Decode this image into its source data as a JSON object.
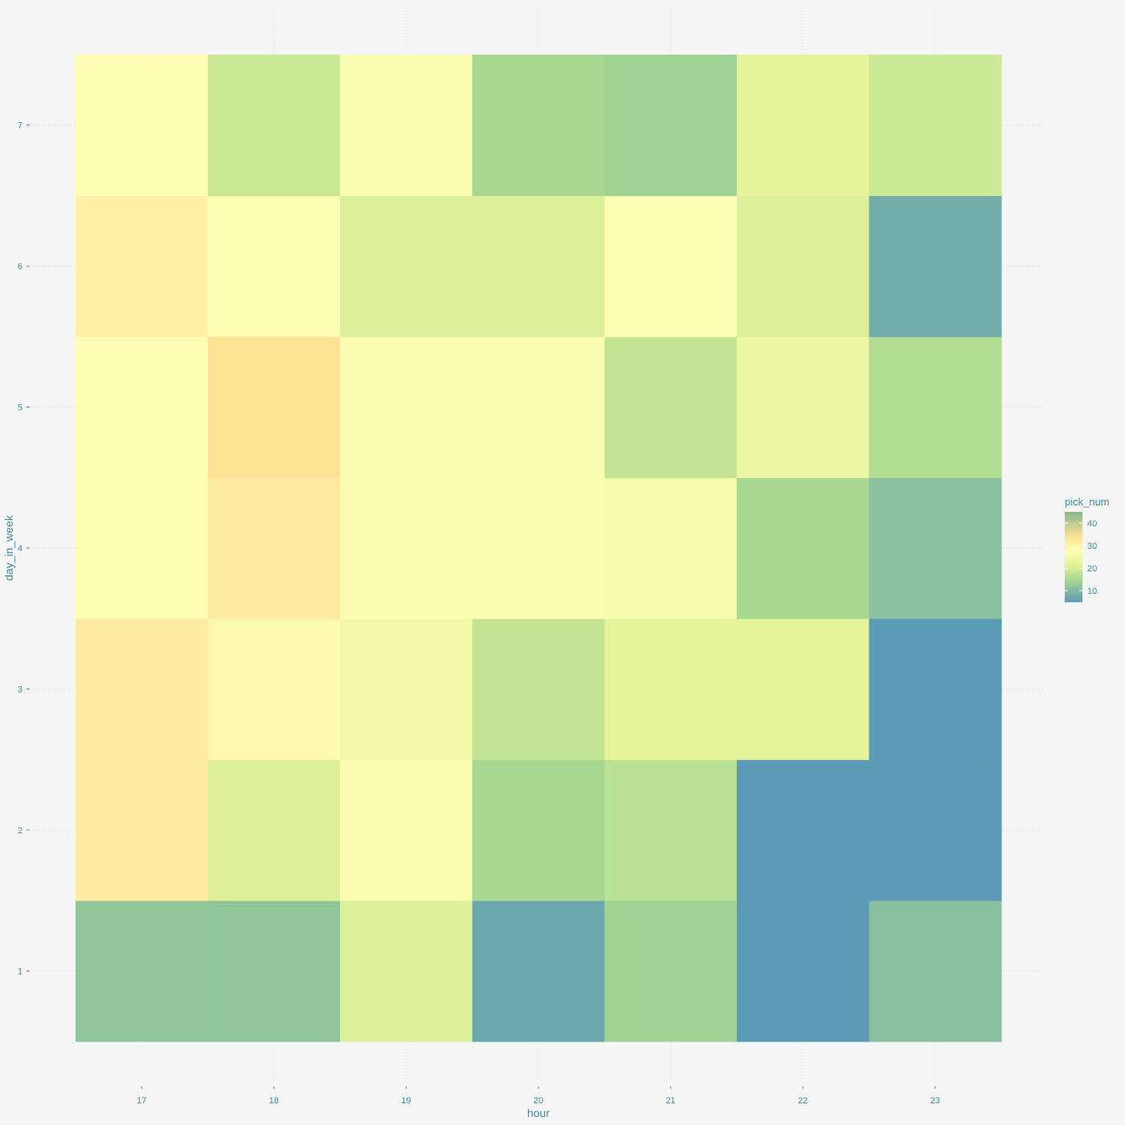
{
  "chart_data": {
    "type": "heatmap",
    "xlabel": "hour",
    "ylabel": "day_in_week",
    "x": [
      17,
      18,
      19,
      20,
      21,
      22,
      23
    ],
    "y": [
      1,
      2,
      3,
      4,
      5,
      6,
      7
    ],
    "z": [
      [
        12,
        12,
        21,
        7,
        14,
        5,
        11
      ],
      [
        32,
        21,
        27,
        15,
        17,
        5,
        5
      ],
      [
        32,
        29,
        25,
        18,
        22,
        22,
        5
      ],
      [
        28,
        32,
        27,
        27,
        26,
        15,
        11
      ],
      [
        28,
        34,
        27,
        27,
        18,
        24,
        16
      ],
      [
        31,
        28,
        21,
        21,
        28,
        21,
        8
      ],
      [
        28,
        19,
        27,
        15,
        14,
        22,
        19
      ]
    ],
    "legend": {
      "title": "pick_num",
      "ticks": [
        10,
        20,
        30,
        40
      ],
      "range": [
        5,
        45
      ],
      "placement": "right"
    },
    "grid": true,
    "colors": {
      "low": "#5b9bb5",
      "low_mid": "#a8d890",
      "mid": "#e5f49a",
      "mid_high": "#fdfdb5",
      "high": "#fee294",
      "top": "#8bb88f",
      "axis_text": "#3a8fa0",
      "background": "#f5f5f5"
    }
  }
}
